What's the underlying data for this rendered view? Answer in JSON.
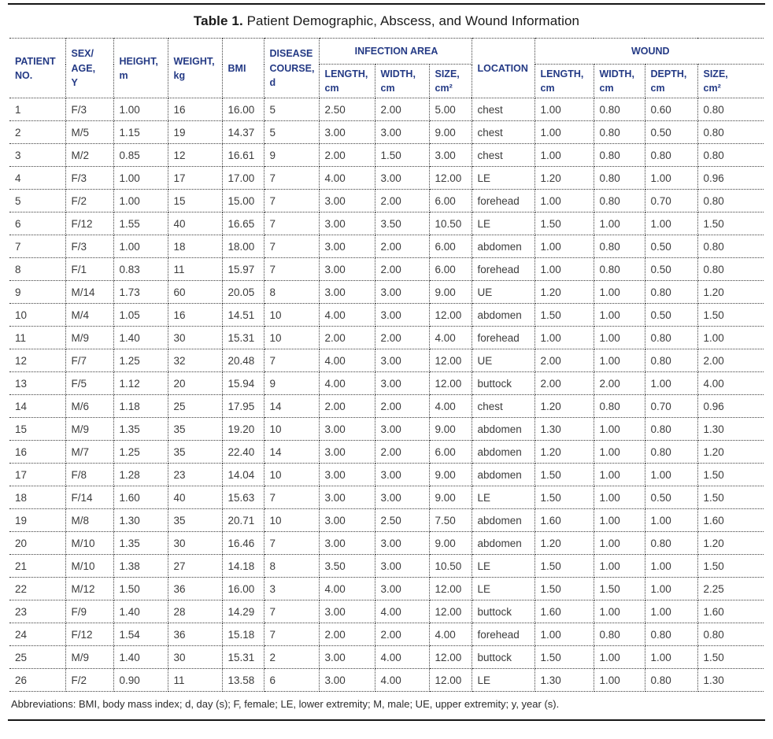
{
  "title": {
    "label": "Table 1.",
    "text": "Patient Demographic, Abscess, and Wound Information"
  },
  "table": {
    "top_headers": {
      "patient_no": "PATIENT\nNO.",
      "sex_age": "SEX/\nAGE,\nY",
      "height": "HEIGHT,\nm",
      "weight": "WEIGHT,\nkg",
      "bmi": "BMI",
      "disease_course": "DISEASE\nCOURSE,\nd",
      "infection_area": "INFECTION AREA",
      "location": "LOCATION",
      "wound": "WOUND"
    },
    "sub_headers": {
      "infection_length": "LENGTH,\ncm",
      "infection_width": "WIDTH,\ncm",
      "infection_size": "SIZE,\ncm²",
      "wound_length": "LENGTH,\ncm",
      "wound_width": "WIDTH,\ncm",
      "wound_depth": "DEPTH,\ncm",
      "wound_size": "SIZE,\ncm²"
    },
    "rows": [
      [
        "1",
        "F/3",
        "1.00",
        "16",
        "16.00",
        "5",
        "2.50",
        "2.00",
        "5.00",
        "chest",
        "1.00",
        "0.80",
        "0.60",
        "0.80"
      ],
      [
        "2",
        "M/5",
        "1.15",
        "19",
        "14.37",
        "5",
        "3.00",
        "3.00",
        "9.00",
        "chest",
        "1.00",
        "0.80",
        "0.50",
        "0.80"
      ],
      [
        "3",
        "M/2",
        "0.85",
        "12",
        "16.61",
        "9",
        "2.00",
        "1.50",
        "3.00",
        "chest",
        "1.00",
        "0.80",
        "0.80",
        "0.80"
      ],
      [
        "4",
        "F/3",
        "1.00",
        "17",
        "17.00",
        "7",
        "4.00",
        "3.00",
        "12.00",
        "LE",
        "1.20",
        "0.80",
        "1.00",
        "0.96"
      ],
      [
        "5",
        "F/2",
        "1.00",
        "15",
        "15.00",
        "7",
        "3.00",
        "2.00",
        "6.00",
        "forehead",
        "1.00",
        "0.80",
        "0.70",
        "0.80"
      ],
      [
        "6",
        "F/12",
        "1.55",
        "40",
        "16.65",
        "7",
        "3.00",
        "3.50",
        "10.50",
        "LE",
        "1.50",
        "1.00",
        "1.00",
        "1.50"
      ],
      [
        "7",
        "F/3",
        "1.00",
        "18",
        "18.00",
        "7",
        "3.00",
        "2.00",
        "6.00",
        "abdomen",
        "1.00",
        "0.80",
        "0.50",
        "0.80"
      ],
      [
        "8",
        "F/1",
        "0.83",
        "11",
        "15.97",
        "7",
        "3.00",
        "2.00",
        "6.00",
        "forehead",
        "1.00",
        "0.80",
        "0.50",
        "0.80"
      ],
      [
        "9",
        "M/14",
        "1.73",
        "60",
        "20.05",
        "8",
        "3.00",
        "3.00",
        "9.00",
        "UE",
        "1.20",
        "1.00",
        "0.80",
        "1.20"
      ],
      [
        "10",
        "M/4",
        "1.05",
        "16",
        "14.51",
        "10",
        "4.00",
        "3.00",
        "12.00",
        "abdomen",
        "1.50",
        "1.00",
        "0.50",
        "1.50"
      ],
      [
        "11",
        "M/9",
        "1.40",
        "30",
        "15.31",
        "10",
        "2.00",
        "2.00",
        "4.00",
        "forehead",
        "1.00",
        "1.00",
        "0.80",
        "1.00"
      ],
      [
        "12",
        "F/7",
        "1.25",
        "32",
        "20.48",
        "7",
        "4.00",
        "3.00",
        "12.00",
        "UE",
        "2.00",
        "1.00",
        "0.80",
        "2.00"
      ],
      [
        "13",
        "F/5",
        "1.12",
        "20",
        "15.94",
        "9",
        "4.00",
        "3.00",
        "12.00",
        "buttock",
        "2.00",
        "2.00",
        "1.00",
        "4.00"
      ],
      [
        "14",
        "M/6",
        "1.18",
        "25",
        "17.95",
        "14",
        "2.00",
        "2.00",
        "4.00",
        "chest",
        "1.20",
        "0.80",
        "0.70",
        "0.96"
      ],
      [
        "15",
        "M/9",
        "1.35",
        "35",
        "19.20",
        "10",
        "3.00",
        "3.00",
        "9.00",
        "abdomen",
        "1.30",
        "1.00",
        "0.80",
        "1.30"
      ],
      [
        "16",
        "M/7",
        "1.25",
        "35",
        "22.40",
        "14",
        "3.00",
        "2.00",
        "6.00",
        "abdomen",
        "1.20",
        "1.00",
        "0.80",
        "1.20"
      ],
      [
        "17",
        "F/8",
        "1.28",
        "23",
        "14.04",
        "10",
        "3.00",
        "3.00",
        "9.00",
        "abdomen",
        "1.50",
        "1.00",
        "1.00",
        "1.50"
      ],
      [
        "18",
        "F/14",
        "1.60",
        "40",
        "15.63",
        "7",
        "3.00",
        "3.00",
        "9.00",
        "LE",
        "1.50",
        "1.00",
        "0.50",
        "1.50"
      ],
      [
        "19",
        "M/8",
        "1.30",
        "35",
        "20.71",
        "10",
        "3.00",
        "2.50",
        "7.50",
        "abdomen",
        "1.60",
        "1.00",
        "1.00",
        "1.60"
      ],
      [
        "20",
        "M/10",
        "1.35",
        "30",
        "16.46",
        "7",
        "3.00",
        "3.00",
        "9.00",
        "abdomen",
        "1.20",
        "1.00",
        "0.80",
        "1.20"
      ],
      [
        "21",
        "M/10",
        "1.38",
        "27",
        "14.18",
        "8",
        "3.50",
        "3.00",
        "10.50",
        "LE",
        "1.50",
        "1.00",
        "1.00",
        "1.50"
      ],
      [
        "22",
        "M/12",
        "1.50",
        "36",
        "16.00",
        "3",
        "4.00",
        "3.00",
        "12.00",
        "LE",
        "1.50",
        "1.50",
        "1.00",
        "2.25"
      ],
      [
        "23",
        "F/9",
        "1.40",
        "28",
        "14.29",
        "7",
        "3.00",
        "4.00",
        "12.00",
        "buttock",
        "1.60",
        "1.00",
        "1.00",
        "1.60"
      ],
      [
        "24",
        "F/12",
        "1.54",
        "36",
        "15.18",
        "7",
        "2.00",
        "2.00",
        "4.00",
        "forehead",
        "1.00",
        "0.80",
        "0.80",
        "0.80"
      ],
      [
        "25",
        "M/9",
        "1.40",
        "30",
        "15.31",
        "2",
        "3.00",
        "4.00",
        "12.00",
        "buttock",
        "1.50",
        "1.00",
        "1.00",
        "1.50"
      ],
      [
        "26",
        "F/2",
        "0.90",
        "11",
        "13.58",
        "6",
        "3.00",
        "4.00",
        "12.00",
        "LE",
        "1.30",
        "1.00",
        "0.80",
        "1.30"
      ]
    ]
  },
  "footnote": "Abbreviations: BMI, body mass index; d, day (s); F, female; LE, lower extremity; M, male; UE, upper extremity; y, year (s).",
  "colors": {
    "header_text": "#243a85",
    "body_text": "#3c3c3c",
    "border": "#3f3f3f",
    "rule": "#161616"
  }
}
